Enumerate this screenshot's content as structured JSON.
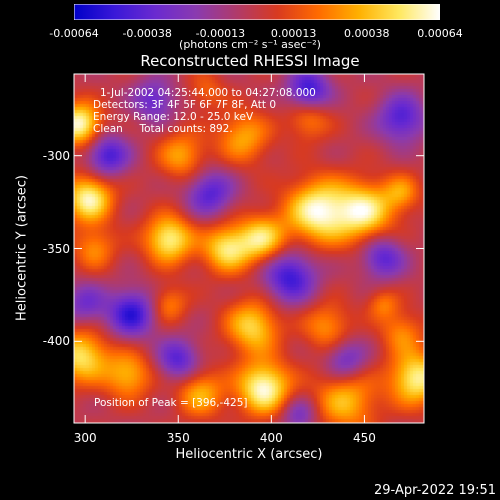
{
  "colorbar": {
    "ticks": [
      "-0.00064",
      "-0.00038",
      "-0.00013",
      "0.00013",
      "0.00038",
      "0.00064"
    ],
    "units": "(photons cm⁻² s⁻¹ asec⁻²)",
    "colors": [
      "#0000c8",
      "#3a18d8",
      "#6a2ad0",
      "#8a3ab0",
      "#b03a6a",
      "#d83a20",
      "#ff6a00",
      "#ffb000",
      "#ffe860",
      "#ffffff"
    ],
    "range": [
      -0.00064,
      0.00064
    ]
  },
  "chart_data": {
    "type": "heatmap",
    "title": "Reconstructed RHESSI Image",
    "xlabel": "Heliocentric X (arcsec)",
    "ylabel": "Heliocentric Y (arcsec)",
    "xlim": [
      294,
      482
    ],
    "ylim": [
      -444,
      -256
    ],
    "xticks": [
      "300",
      "350",
      "400",
      "450"
    ],
    "yticks": [
      "-300",
      "-350",
      "-400"
    ],
    "annotation_lines": [
      "1-Jul-2002 04:25:44.000 to 04:27:08.000",
      "Detectors: 3F 4F 5F 6F 7F 8F, Att 0",
      "Energy Range: 12.0 - 25.0 keV",
      "Clean     Total counts: 892."
    ],
    "peak_label": "Position of Peak = [396,-425]",
    "peak": [
      396,
      -425
    ],
    "blobs": [
      {
        "x": 297,
        "y": -283,
        "v": 0.00064,
        "r": 8
      },
      {
        "x": 302,
        "y": -323,
        "v": 0.0006,
        "r": 9
      },
      {
        "x": 298,
        "y": -408,
        "v": 0.00052,
        "r": 10
      },
      {
        "x": 305,
        "y": -350,
        "v": 0.0003,
        "r": 8
      },
      {
        "x": 345,
        "y": -345,
        "v": 0.00058,
        "r": 9
      },
      {
        "x": 352,
        "y": -300,
        "v": 0.00035,
        "r": 9
      },
      {
        "x": 345,
        "y": -380,
        "v": 0.00028,
        "r": 7
      },
      {
        "x": 323,
        "y": -418,
        "v": 0.0004,
        "r": 9
      },
      {
        "x": 362,
        "y": -428,
        "v": 0.00038,
        "r": 9
      },
      {
        "x": 385,
        "y": -290,
        "v": 0.00036,
        "r": 10
      },
      {
        "x": 420,
        "y": -280,
        "v": 0.0003,
        "r": 8
      },
      {
        "x": 376,
        "y": -350,
        "v": 0.00052,
        "r": 9
      },
      {
        "x": 395,
        "y": -345,
        "v": 0.0005,
        "r": 9
      },
      {
        "x": 425,
        "y": -330,
        "v": 0.00062,
        "r": 12
      },
      {
        "x": 450,
        "y": -330,
        "v": 0.00055,
        "r": 11
      },
      {
        "x": 470,
        "y": -320,
        "v": 0.0003,
        "r": 7
      },
      {
        "x": 390,
        "y": -392,
        "v": 0.00048,
        "r": 10
      },
      {
        "x": 430,
        "y": -392,
        "v": 0.00032,
        "r": 9
      },
      {
        "x": 470,
        "y": -395,
        "v": 0.00028,
        "r": 8
      },
      {
        "x": 396,
        "y": -425,
        "v": 0.00064,
        "r": 10
      },
      {
        "x": 440,
        "y": -432,
        "v": 0.0004,
        "r": 12
      },
      {
        "x": 478,
        "y": -420,
        "v": 0.00058,
        "r": 10
      },
      {
        "x": 460,
        "y": -380,
        "v": 0.00025,
        "r": 6
      },
      {
        "x": 365,
        "y": -265,
        "v": 0.0002,
        "r": 7
      },
      {
        "x": 325,
        "y": -385,
        "v": -0.0005,
        "r": 9
      },
      {
        "x": 312,
        "y": -300,
        "v": -0.00045,
        "r": 8
      },
      {
        "x": 420,
        "y": -265,
        "v": -0.0005,
        "r": 8
      },
      {
        "x": 470,
        "y": -280,
        "v": -0.00042,
        "r": 9
      },
      {
        "x": 410,
        "y": -365,
        "v": -0.00048,
        "r": 10
      },
      {
        "x": 367,
        "y": -320,
        "v": -0.0004,
        "r": 9
      },
      {
        "x": 350,
        "y": -410,
        "v": -0.0004,
        "r": 8
      },
      {
        "x": 460,
        "y": -355,
        "v": -0.0004,
        "r": 8
      },
      {
        "x": 337,
        "y": -270,
        "v": -0.00035,
        "r": 8
      },
      {
        "x": 300,
        "y": -380,
        "v": -0.0003,
        "r": 8
      },
      {
        "x": 440,
        "y": -410,
        "v": -0.00035,
        "r": 8
      },
      {
        "x": 415,
        "y": -440,
        "v": -0.0003,
        "r": 7
      }
    ]
  },
  "footer": {
    "timestamp": "29-Apr-2022 19:51"
  }
}
